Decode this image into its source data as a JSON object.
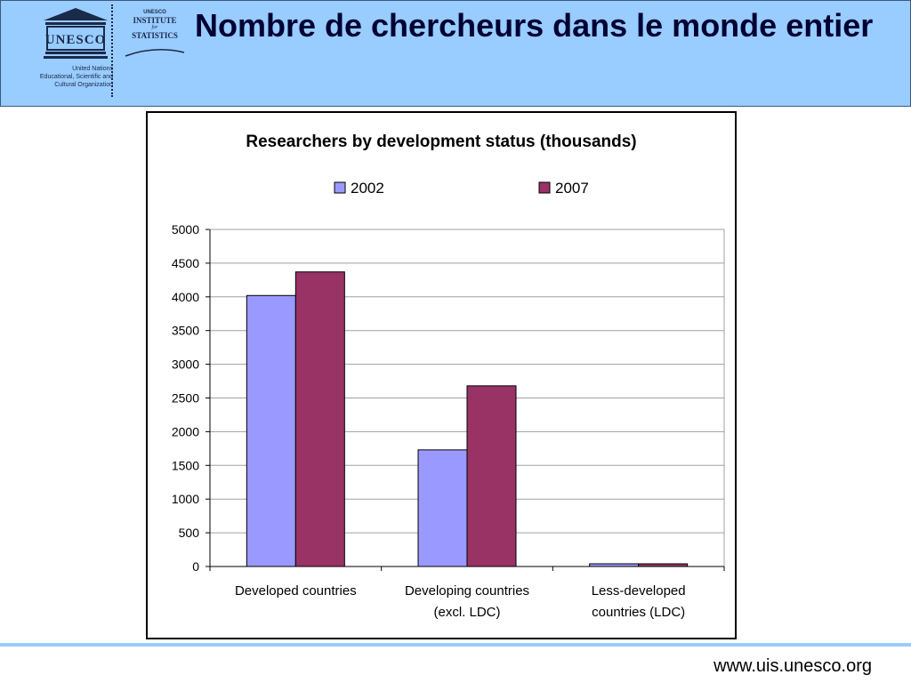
{
  "header": {
    "title": "Nombre de chercheurs dans le monde entier",
    "unesco_logo_text": "UNESCO",
    "un_org_name": [
      "United Nations",
      "Educational, Scientific and",
      "Cultural Organization"
    ],
    "uis_logo": {
      "line1": "UNESCO",
      "line2": "INSTITUTE",
      "line3": "for",
      "line4": "STATISTICS"
    },
    "background_color": "#99ccff"
  },
  "chart_data": {
    "type": "bar",
    "title": "Researchers by development status (thousands)",
    "categories": [
      [
        "Developed countries"
      ],
      [
        "Developing countries",
        "(excl. LDC)"
      ],
      [
        "Less-developed",
        "countries (LDC)"
      ]
    ],
    "series": [
      {
        "name": "2002",
        "color": "#9999ff",
        "values": [
          4020,
          1730,
          40
        ]
      },
      {
        "name": "2007",
        "color": "#993366",
        "values": [
          4370,
          2680,
          40
        ]
      }
    ],
    "ylim": [
      0,
      5000
    ],
    "yticks": [
      0,
      500,
      1000,
      1500,
      2000,
      2500,
      3000,
      3500,
      4000,
      4500,
      5000
    ],
    "grid": true,
    "legend_position": "top"
  },
  "footer": {
    "url": "www.uis.unesco.org",
    "line_color": "#99ccff"
  }
}
